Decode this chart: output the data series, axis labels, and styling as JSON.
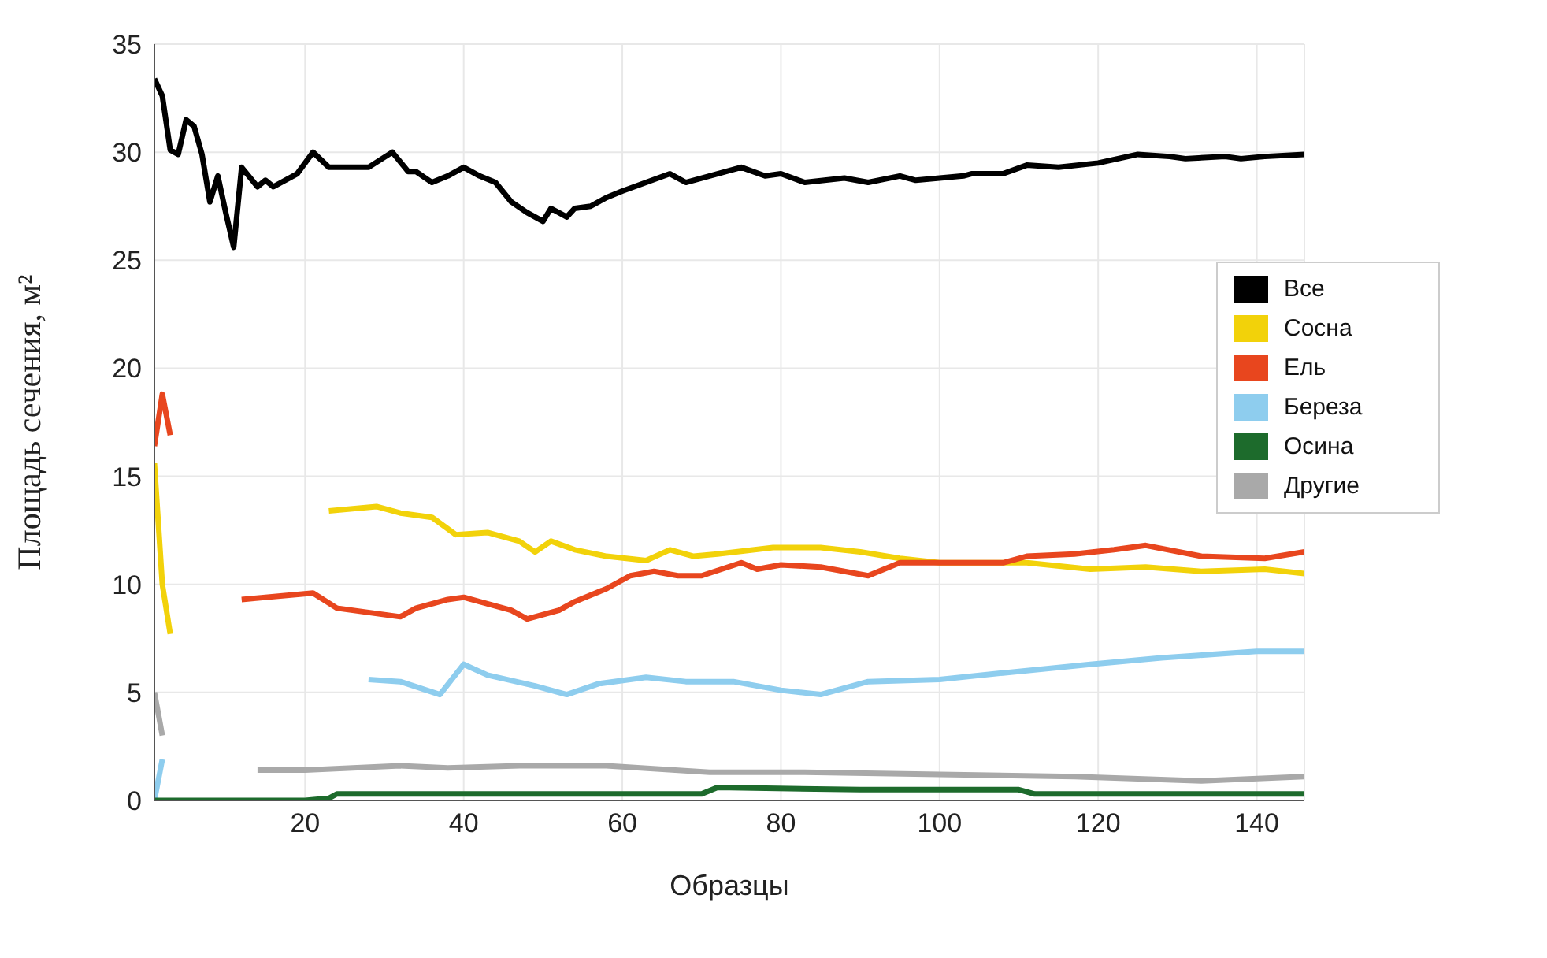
{
  "chart_data": {
    "type": "line",
    "xlabel": "Образцы",
    "ylabel": "Площадь сечения, м²",
    "xlim": [
      1,
      146
    ],
    "xticks": [
      20,
      40,
      60,
      80,
      100,
      120,
      140
    ],
    "ylim": [
      0,
      35
    ],
    "yticks": [
      0,
      5,
      10,
      15,
      20,
      25,
      30,
      35
    ],
    "grid": true,
    "legend": "right",
    "marker": "none",
    "line_style": "solid",
    "series": [
      {
        "name": "Все",
        "color": "#000000",
        "x": [
          1,
          2,
          3,
          4,
          5,
          6,
          7,
          8,
          9,
          10,
          11,
          12,
          14,
          15,
          16,
          19,
          21,
          23,
          26,
          28,
          31,
          33,
          34,
          36,
          38,
          40,
          42,
          44,
          46,
          48,
          50,
          51,
          53,
          54,
          56,
          58,
          60,
          63,
          66,
          68,
          71,
          74,
          75,
          78,
          80,
          83,
          88,
          91,
          95,
          97,
          103,
          104,
          108,
          111,
          115,
          120,
          125,
          129,
          131,
          136,
          138,
          141,
          146
        ],
        "values": [
          33.4,
          32.6,
          30.1,
          29.9,
          31.5,
          31.2,
          29.9,
          27.7,
          28.9,
          27.2,
          25.6,
          29.3,
          28.4,
          28.7,
          28.4,
          29.0,
          30.0,
          29.3,
          29.3,
          29.3,
          30.0,
          29.1,
          29.1,
          28.6,
          28.9,
          29.3,
          28.9,
          28.6,
          27.7,
          27.2,
          26.8,
          27.4,
          27.0,
          27.4,
          27.5,
          27.9,
          28.2,
          28.6,
          29.0,
          28.6,
          28.9,
          29.2,
          29.3,
          28.9,
          29.0,
          28.6,
          28.8,
          28.6,
          28.9,
          28.7,
          28.9,
          29.0,
          29.0,
          29.4,
          29.3,
          29.5,
          29.9,
          29.8,
          29.7,
          29.8,
          29.7,
          29.8,
          29.9
        ]
      },
      {
        "name": "Сосна",
        "color": "#f2d20a",
        "x": [
          1,
          2,
          3,
          4,
          23,
          29,
          32,
          36,
          39,
          43,
          47,
          49,
          51,
          54,
          58,
          63,
          66,
          69,
          72,
          79,
          85,
          90,
          95,
          100,
          111,
          119,
          126,
          133,
          141,
          146
        ],
        "values": [
          15.6,
          10.0,
          7.7,
          null,
          13.4,
          13.6,
          13.3,
          13.1,
          12.3,
          12.4,
          12.0,
          11.5,
          12.0,
          11.6,
          11.3,
          11.1,
          11.6,
          11.3,
          11.4,
          11.7,
          11.7,
          11.5,
          11.2,
          11.0,
          11.0,
          10.7,
          10.8,
          10.6,
          10.7,
          10.5
        ]
      },
      {
        "name": "Ель",
        "color": "#e8461e",
        "x": [
          1,
          2,
          3,
          4,
          12,
          21,
          24,
          30,
          32,
          34,
          38,
          40,
          43,
          46,
          48,
          52,
          54,
          58,
          61,
          64,
          67,
          70,
          75,
          77,
          80,
          85,
          91,
          95,
          100,
          108,
          111,
          117,
          122,
          126,
          133,
          141,
          146
        ],
        "values": [
          16.4,
          18.8,
          16.9,
          null,
          9.3,
          9.6,
          8.9,
          8.6,
          8.5,
          8.9,
          9.3,
          9.4,
          9.1,
          8.8,
          8.4,
          8.8,
          9.2,
          9.8,
          10.4,
          10.6,
          10.4,
          10.4,
          11.0,
          10.7,
          10.9,
          10.8,
          10.4,
          11.0,
          11.0,
          11.0,
          11.3,
          11.4,
          11.6,
          11.8,
          11.3,
          11.2,
          11.5
        ]
      },
      {
        "name": "Береза",
        "color": "#8ecdee",
        "x": [
          1,
          2,
          3,
          28,
          32,
          37,
          40,
          43,
          49,
          53,
          57,
          63,
          68,
          74,
          80,
          85,
          91,
          100,
          108,
          119,
          128,
          140,
          146
        ],
        "values": [
          0,
          1.9,
          null,
          5.6,
          5.5,
          4.9,
          6.3,
          5.8,
          5.3,
          4.9,
          5.4,
          5.7,
          5.5,
          5.5,
          5.1,
          4.9,
          5.5,
          5.6,
          5.9,
          6.3,
          6.6,
          6.9,
          6.9
        ]
      },
      {
        "name": "Осина",
        "color": "#1d6b2c",
        "x": [
          1,
          10,
          20,
          23,
          24,
          40,
          60,
          70,
          72,
          90,
          110,
          112,
          130,
          146
        ],
        "values": [
          0,
          0,
          0,
          0.1,
          0.3,
          0.3,
          0.3,
          0.3,
          0.6,
          0.5,
          0.5,
          0.3,
          0.3,
          0.3
        ]
      },
      {
        "name": "Другие",
        "color": "#a9a9a9",
        "x": [
          1,
          2,
          3,
          14,
          20,
          32,
          38,
          47,
          58,
          71,
          83,
          100,
          117,
          133,
          146
        ],
        "values": [
          5.0,
          3.0,
          null,
          1.4,
          1.4,
          1.6,
          1.5,
          1.6,
          1.6,
          1.3,
          1.3,
          1.2,
          1.1,
          0.9,
          1.1
        ]
      }
    ]
  }
}
